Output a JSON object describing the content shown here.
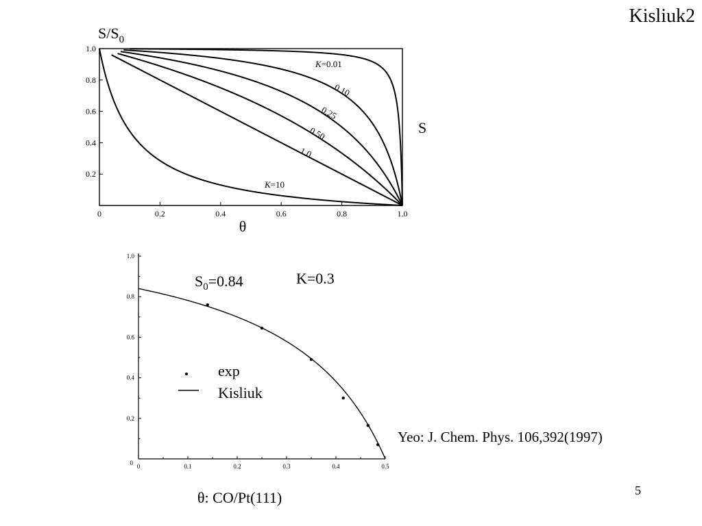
{
  "slide": {
    "title": "Kisliuk2",
    "page_number": "5",
    "citation": "Yeo: J. Chem. Phys. 106,392(1997)",
    "caption_symbol": "θ",
    "caption_text": ": CO/Pt(111)"
  },
  "chart_data": [
    {
      "type": "line",
      "ylabel_main": "S/S",
      "ylabel_sub": "0",
      "xlabel": "θ",
      "right_label": "S",
      "xlim": [
        0,
        1.0
      ],
      "ylim": [
        0,
        1.0
      ],
      "x_ticks": [
        "0",
        "0.2",
        "0.4",
        "0.6",
        "0.8",
        "1.0"
      ],
      "y_ticks": [
        "1.0",
        "0.8",
        "0.6",
        "0.4",
        "0.2"
      ],
      "series": [
        {
          "name": "K=0.01",
          "k": 0.01,
          "label_italic": "K",
          "label_rest": "=0.01"
        },
        {
          "name": "0.10",
          "k": 0.1,
          "label_rest": "0.10"
        },
        {
          "name": "0.25",
          "k": 0.25,
          "label_rest": "0.25"
        },
        {
          "name": "0.50",
          "k": 0.5,
          "label_rest": "0.50"
        },
        {
          "name": "1.0",
          "k": 1.0,
          "label_rest": "1.0"
        },
        {
          "name": "K=10",
          "k": 10,
          "label_italic": "K",
          "label_rest": "=10"
        }
      ]
    },
    {
      "type": "scatter",
      "xlim": [
        0,
        0.5
      ],
      "ylim": [
        0,
        1.0
      ],
      "x_ticks": [
        "0",
        "0.1",
        "0.2",
        "0.3",
        "0.4",
        "0.5"
      ],
      "y_ticks": [
        "1.0",
        "0.8",
        "0.6",
        "0.4",
        "0.2"
      ],
      "annotation_s0_main": "S",
      "annotation_s0_sub": "0",
      "annotation_s0_value": "=0.84",
      "annotation_k": "K=0.3",
      "s0": 0.84,
      "k": 0.3,
      "theta_sat": 0.5,
      "legend": [
        {
          "label": "exp",
          "marker": "dot"
        },
        {
          "label": "Kisliuk",
          "marker": "line"
        }
      ],
      "experimental": {
        "x": [
          0.14,
          0.25,
          0.35,
          0.415,
          0.465,
          0.485
        ],
        "y": [
          0.76,
          0.645,
          0.49,
          0.3,
          0.165,
          0.07
        ]
      }
    }
  ]
}
